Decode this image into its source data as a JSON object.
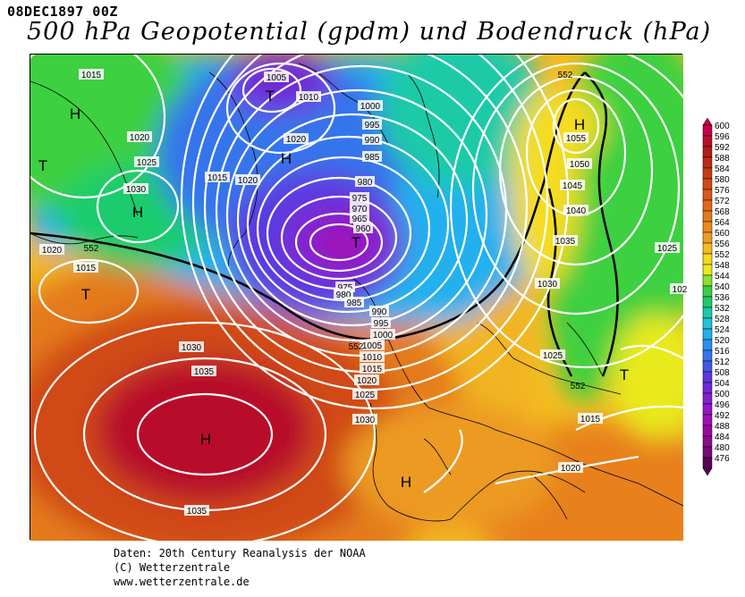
{
  "header": {
    "date_label": "08DEC1897 00Z",
    "title": "500 hPa Geopotential (gpdm) und Bodendruck (hPa)"
  },
  "footer": {
    "line1": "Daten: 20th Century Reanalysis der NOAA",
    "line2": "(C) Wetterzentrale",
    "line3": "www.wetterzentrale.de"
  },
  "legend": {
    "levels": [
      "600",
      "596",
      "592",
      "588",
      "584",
      "580",
      "576",
      "572",
      "568",
      "564",
      "560",
      "556",
      "552",
      "548",
      "544",
      "540",
      "536",
      "532",
      "528",
      "524",
      "520",
      "516",
      "512",
      "508",
      "504",
      "500",
      "496",
      "492",
      "488",
      "484",
      "480",
      "476"
    ],
    "colors": [
      "#c8004a",
      "#b8102a",
      "#b01e14",
      "#be2c14",
      "#c83a14",
      "#d04a16",
      "#d85a18",
      "#e06a1a",
      "#e47a1c",
      "#e98c1c",
      "#ee9e22",
      "#f4bc20",
      "#f4dc20",
      "#e8ea1c",
      "#8ce030",
      "#3cd040",
      "#1ecc6c",
      "#1ccaa8",
      "#20c4d8",
      "#22b0ee",
      "#2a92ee",
      "#3474ec",
      "#4458e6",
      "#5a3ae0",
      "#6e2ad8",
      "#8420d0",
      "#9616c8",
      "#a20eb4",
      "#9a08a0",
      "#8c0a8c",
      "#7a0a78",
      "#5a0058"
    ]
  },
  "isobar_labels": [
    {
      "id": "1015-nw",
      "text": "1015"
    },
    {
      "id": "1020-nw",
      "text": "1020"
    },
    {
      "id": "1025-nw",
      "text": "1025"
    },
    {
      "id": "1030-nw",
      "text": "1030"
    },
    {
      "id": "1015-w",
      "text": "1015"
    },
    {
      "id": "1020-w",
      "text": "1020"
    },
    {
      "id": "1005-n",
      "text": "1005"
    },
    {
      "id": "1010-n",
      "text": "1010"
    },
    {
      "id": "1020-n",
      "text": "1020"
    },
    {
      "id": "1015-green",
      "text": "1015"
    },
    {
      "id": "1020-green",
      "text": "1020"
    },
    {
      "id": "1000-c",
      "text": "1000"
    },
    {
      "id": "995-c",
      "text": "995"
    },
    {
      "id": "990-c",
      "text": "990"
    },
    {
      "id": "985-c",
      "text": "985"
    },
    {
      "id": "980-c",
      "text": "980"
    },
    {
      "id": "975-c",
      "text": "975"
    },
    {
      "id": "970-c",
      "text": "970"
    },
    {
      "id": "965-c",
      "text": "965"
    },
    {
      "id": "960-c",
      "text": "960"
    },
    {
      "id": "975-s",
      "text": "975"
    },
    {
      "id": "980-s",
      "text": "980"
    },
    {
      "id": "985-s",
      "text": "985"
    },
    {
      "id": "990-s",
      "text": "990"
    },
    {
      "id": "995-s",
      "text": "995"
    },
    {
      "id": "1000-s",
      "text": "1000"
    },
    {
      "id": "1005-s",
      "text": "1005"
    },
    {
      "id": "1010-s",
      "text": "1010"
    },
    {
      "id": "1015-s",
      "text": "1015"
    },
    {
      "id": "1020-s",
      "text": "1020"
    },
    {
      "id": "1025-s",
      "text": "1025"
    },
    {
      "id": "1030-s",
      "text": "1030"
    },
    {
      "id": "1030-az",
      "text": "1030"
    },
    {
      "id": "1035-az",
      "text": "1035"
    },
    {
      "id": "1035-bot",
      "text": "1035"
    },
    {
      "id": "1055-e",
      "text": "1055"
    },
    {
      "id": "1050-e",
      "text": "1050"
    },
    {
      "id": "1045-e",
      "text": "1045"
    },
    {
      "id": "1040-e",
      "text": "1040"
    },
    {
      "id": "1035-e",
      "text": "1035"
    },
    {
      "id": "1030-e",
      "text": "1030"
    },
    {
      "id": "1025-e",
      "text": "1025"
    },
    {
      "id": "1025-ee",
      "text": "1025"
    },
    {
      "id": "1015-e",
      "text": "1015"
    },
    {
      "id": "1020-se",
      "text": "1020"
    },
    {
      "id": "102-edge",
      "text": "102"
    }
  ],
  "height_labels": [
    {
      "id": "552-w",
      "text": "552"
    },
    {
      "id": "552-c",
      "text": "552"
    },
    {
      "id": "552-ne",
      "text": "552"
    },
    {
      "id": "552-se",
      "text": "552"
    }
  ],
  "pressure_centers": [
    {
      "id": "H-nw",
      "text": "H"
    },
    {
      "id": "T-w",
      "text": "T"
    },
    {
      "id": "H-gl",
      "text": "H"
    },
    {
      "id": "T-n",
      "text": "T"
    },
    {
      "id": "H-n",
      "text": "H"
    },
    {
      "id": "T-low",
      "text": "T"
    },
    {
      "id": "T-sw",
      "text": "T"
    },
    {
      "id": "H-az",
      "text": "H"
    },
    {
      "id": "H-ne",
      "text": "H"
    },
    {
      "id": "T-e",
      "text": "T"
    },
    {
      "id": "H-sp",
      "text": "H"
    }
  ]
}
